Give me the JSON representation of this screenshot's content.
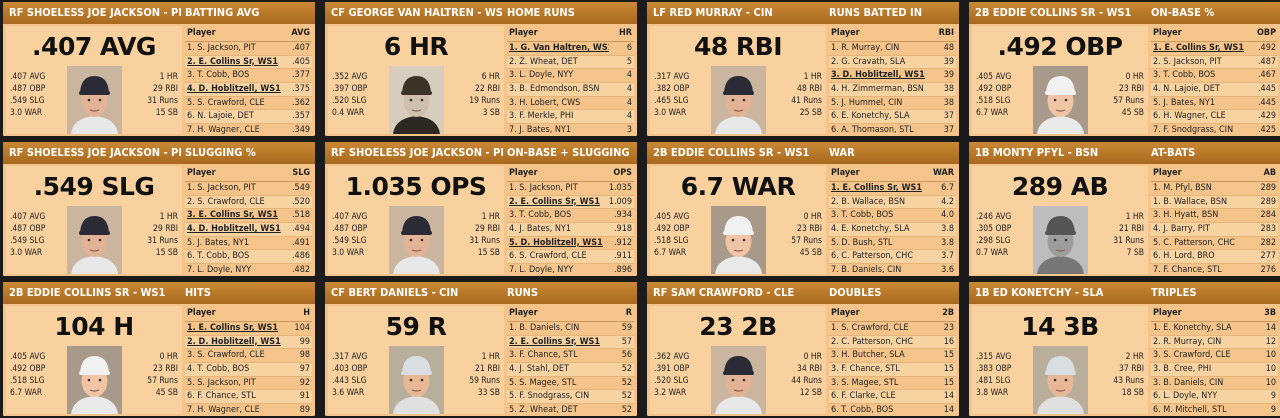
{
  "cards": [
    {
      "player_label": "RF SHOELESS JOE JACKSON - PIT",
      "stat_title": "BATTING AVG",
      "big": ".407 AVG",
      "photo_icon": "player-portrait-dark-cap",
      "left_stats": [
        [
          ".407 AVG",
          "1 HR"
        ],
        [
          ".487 OBP",
          "29 RBI"
        ],
        [
          ".549 SLG",
          "31 Runs"
        ],
        [
          "3.0 WAR",
          "15 SB"
        ]
      ],
      "table_header": [
        "Player",
        "AVG"
      ],
      "rows": [
        [
          "1. S. Jackson, PIT",
          ".407"
        ],
        [
          "2. E. Collins Sr, WS1",
          ".405"
        ],
        [
          "3. T. Cobb, BOS",
          ".377"
        ],
        [
          "4. D. Hoblitzell, WS1",
          ".375"
        ],
        [
          "5. S. Crawford, CLE",
          ".362"
        ],
        [
          "6. N. Lajoie, DET",
          ".357"
        ],
        [
          "7. H. Wagner, CLE",
          ".349"
        ]
      ],
      "highlight": [
        1,
        3
      ]
    },
    {
      "player_label": "CF GEORGE VAN HALTREN - WS1",
      "stat_title": "HOME RUNS",
      "big": "6 HR",
      "photo_icon": "player-portrait-sepia-suit",
      "left_stats": [
        [
          ".352 AVG",
          "6 HR"
        ],
        [
          ".397 OBP",
          "22 RBI"
        ],
        [
          ".520 SLG",
          "19 Runs"
        ],
        [
          "0.4 WAR",
          "3 SB"
        ]
      ],
      "table_header": [
        "Player",
        "HR"
      ],
      "rows": [
        [
          "1. G. Van Haltren, WS1",
          "6"
        ],
        [
          "2. Z. Wheat, DET",
          "5"
        ],
        [
          "3. L. Doyle, NYY",
          "4"
        ],
        [
          "3. B. Edmondson, BSN",
          "4"
        ],
        [
          "3. H. Lobert, CWS",
          "4"
        ],
        [
          "3. F. Merkle, PHI",
          "4"
        ],
        [
          "7. J. Bates, NY1",
          "3"
        ]
      ],
      "highlight": [
        0
      ]
    },
    {
      "player_label": "LF RED MURRAY - CIN",
      "stat_title": "RUNS BATTED IN",
      "big": "48 RBI",
      "photo_icon": "player-portrait-dark-cap",
      "left_stats": [
        [
          ".317 AVG",
          "1 HR"
        ],
        [
          ".382 OBP",
          "48 RBI"
        ],
        [
          ".465 SLG",
          "41 Runs"
        ],
        [
          "3.0 WAR",
          "25 SB"
        ]
      ],
      "table_header": [
        "Player",
        "RBI"
      ],
      "rows": [
        [
          "1. R. Murray, CIN",
          "48"
        ],
        [
          "2. G. Cravath, SLA",
          "39"
        ],
        [
          "3. D. Hoblitzell, WS1",
          "39"
        ],
        [
          "4. H. Zimmerman, BSN",
          "38"
        ],
        [
          "5. J. Hummel, CIN",
          "38"
        ],
        [
          "6. E. Konetchy, SLA",
          "37"
        ],
        [
          "6. A. Thomason, STL",
          "37"
        ]
      ],
      "highlight": [
        2
      ]
    },
    {
      "player_label": "2B EDDIE COLLINS SR - WS1",
      "stat_title": "ON-BASE %",
      "big": ".492 OBP",
      "photo_icon": "player-portrait-striped-cap",
      "left_stats": [
        [
          ".405 AVG",
          "0 HR"
        ],
        [
          ".492 OBP",
          "23 RBI"
        ],
        [
          ".518 SLG",
          "57 Runs"
        ],
        [
          "6.7 WAR",
          "45 SB"
        ]
      ],
      "table_header": [
        "Player",
        "OBP"
      ],
      "rows": [
        [
          "1. E. Collins Sr, WS1",
          ".492"
        ],
        [
          "2. S. Jackson, PIT",
          ".487"
        ],
        [
          "3. T. Cobb, BOS",
          ".467"
        ],
        [
          "4. N. Lajoie, DET",
          ".445"
        ],
        [
          "5. J. Bates, NY1",
          ".445"
        ],
        [
          "6. H. Wagner, CLE",
          ".429"
        ],
        [
          "7. F. Snodgrass, CIN",
          ".425"
        ]
      ],
      "highlight": [
        0
      ]
    },
    {
      "player_label": "RF SHOELESS JOE JACKSON - PIT",
      "stat_title": "SLUGGING %",
      "big": ".549 SLG",
      "photo_icon": "player-portrait-dark-cap",
      "left_stats": [
        [
          ".407 AVG",
          "1 HR"
        ],
        [
          ".487 OBP",
          "29 RBI"
        ],
        [
          ".549 SLG",
          "31 Runs"
        ],
        [
          "3.0 WAR",
          "15 SB"
        ]
      ],
      "table_header": [
        "Player",
        "SLG"
      ],
      "rows": [
        [
          "1. S. Jackson, PIT",
          ".549"
        ],
        [
          "2. S. Crawford, CLE",
          ".520"
        ],
        [
          "3. E. Collins Sr, WS1",
          ".518"
        ],
        [
          "4. D. Hoblitzell, WS1",
          ".494"
        ],
        [
          "5. J. Bates, NY1",
          ".491"
        ],
        [
          "6. T. Cobb, BOS",
          ".486"
        ],
        [
          "7. L. Doyle, NYY",
          ".482"
        ]
      ],
      "highlight": [
        2,
        3
      ]
    },
    {
      "player_label": "RF SHOELESS JOE JACKSON - PIT",
      "stat_title": "ON-BASE + SLUGGING",
      "big": "1.035 OPS",
      "photo_icon": "player-portrait-dark-cap",
      "left_stats": [
        [
          ".407 AVG",
          "1 HR"
        ],
        [
          ".487 OBP",
          "29 RBI"
        ],
        [
          ".549 SLG",
          "31 Runs"
        ],
        [
          "3.0 WAR",
          "15 SB"
        ]
      ],
      "table_header": [
        "Player",
        "OPS"
      ],
      "rows": [
        [
          "1. S. Jackson, PIT",
          "1.035"
        ],
        [
          "2. E. Collins Sr, WS1",
          "1.009"
        ],
        [
          "3. T. Cobb, BOS",
          ".934"
        ],
        [
          "4. J. Bates, NY1",
          ".918"
        ],
        [
          "5. D. Hoblitzell, WS1",
          ".912"
        ],
        [
          "6. S. Crawford, CLE",
          ".911"
        ],
        [
          "7. L. Doyle, NYY",
          ".896"
        ]
      ],
      "highlight": [
        1,
        4
      ]
    },
    {
      "player_label": "2B EDDIE COLLINS SR - WS1",
      "stat_title": "WAR",
      "big": "6.7 WAR",
      "photo_icon": "player-portrait-striped-cap",
      "left_stats": [
        [
          ".405 AVG",
          "0 HR"
        ],
        [
          ".492 OBP",
          "23 RBI"
        ],
        [
          ".518 SLG",
          "57 Runs"
        ],
        [
          "6.7 WAR",
          "45 SB"
        ]
      ],
      "table_header": [
        "Player",
        "WAR"
      ],
      "rows": [
        [
          "1. E. Collins Sr, WS1",
          "6.7"
        ],
        [
          "2. B. Wallace, BSN",
          "4.2"
        ],
        [
          "3. T. Cobb, BOS",
          "4.0"
        ],
        [
          "4. E. Konetchy, SLA",
          "3.8"
        ],
        [
          "5. D. Bush, STL",
          "3.8"
        ],
        [
          "6. C. Patterson, CHC",
          "3.7"
        ],
        [
          "7. B. Daniels, CIN",
          "3.6"
        ]
      ],
      "highlight": [
        0
      ]
    },
    {
      "player_label": "1B MONTY PFYL - BSN",
      "stat_title": "AT-BATS",
      "big": "289 AB",
      "photo_icon": "player-portrait-grayscale",
      "left_stats": [
        [
          ".246 AVG",
          "1 HR"
        ],
        [
          ".305 OBP",
          "21 RBI"
        ],
        [
          ".298 SLG",
          "31 Runs"
        ],
        [
          "0.7 WAR",
          "7 SB"
        ]
      ],
      "table_header": [
        "Player",
        "AB"
      ],
      "rows": [
        [
          "1. M. Pfyl, BSN",
          "289"
        ],
        [
          "1. B. Wallace, BSN",
          "289"
        ],
        [
          "3. H. Hyatt, BSN",
          "284"
        ],
        [
          "4. J. Barry, PIT",
          "283"
        ],
        [
          "5. C. Patterson, CHC",
          "282"
        ],
        [
          "6. H. Lord, BRO",
          "277"
        ],
        [
          "7. F. Chance, STL",
          "276"
        ]
      ],
      "highlight": []
    },
    {
      "player_label": "2B EDDIE COLLINS SR - WS1",
      "stat_title": "HITS",
      "big": "104 H",
      "photo_icon": "player-portrait-striped-cap",
      "left_stats": [
        [
          ".405 AVG",
          "0 HR"
        ],
        [
          ".492 OBP",
          "23 RBI"
        ],
        [
          ".518 SLG",
          "57 Runs"
        ],
        [
          "6.7 WAR",
          "45 SB"
        ]
      ],
      "table_header": [
        "Player",
        "H"
      ],
      "rows": [
        [
          "1. E. Collins Sr, WS1",
          "104"
        ],
        [
          "2. D. Hoblitzell, WS1",
          "99"
        ],
        [
          "3. S. Crawford, CLE",
          "98"
        ],
        [
          "4. T. Cobb, BOS",
          "97"
        ],
        [
          "5. S. Jackson, PIT",
          "92"
        ],
        [
          "6. F. Chance, STL",
          "91"
        ],
        [
          "7. H. Wagner, CLE",
          "89"
        ]
      ],
      "highlight": [
        0,
        1
      ]
    },
    {
      "player_label": "CF BERT DANIELS - CIN",
      "stat_title": "RUNS",
      "big": "59 R",
      "photo_icon": "player-portrait-light-cap",
      "left_stats": [
        [
          ".317 AVG",
          "1 HR"
        ],
        [
          ".403 OBP",
          "21 RBI"
        ],
        [
          ".443 SLG",
          "59 Runs"
        ],
        [
          "3.6 WAR",
          "33 SB"
        ]
      ],
      "table_header": [
        "Player",
        "R"
      ],
      "rows": [
        [
          "1. B. Daniels, CIN",
          "59"
        ],
        [
          "2. E. Collins Sr, WS1",
          "57"
        ],
        [
          "3. F. Chance, STL",
          "56"
        ],
        [
          "4. J. Stahl, DET",
          "52"
        ],
        [
          "5. S. Magee, STL",
          "52"
        ],
        [
          "5. F. Snodgrass, CIN",
          "52"
        ],
        [
          "5. Z. Wheat, DET",
          "52"
        ]
      ],
      "highlight": [
        1
      ]
    },
    {
      "player_label": "RF SAM CRAWFORD - CLE",
      "stat_title": "DOUBLES",
      "big": "23 2B",
      "photo_icon": "player-portrait-dark-cap",
      "left_stats": [
        [
          ".362 AVG",
          "0 HR"
        ],
        [
          ".391 OBP",
          "34 RBI"
        ],
        [
          ".520 SLG",
          "44 Runs"
        ],
        [
          "3.2 WAR",
          "12 SB"
        ]
      ],
      "table_header": [
        "Player",
        "2B"
      ],
      "rows": [
        [
          "1. S. Crawford, CLE",
          "23"
        ],
        [
          "2. C. Patterson, CHC",
          "16"
        ],
        [
          "3. H. Butcher, SLA",
          "15"
        ],
        [
          "3. F. Chance, STL",
          "15"
        ],
        [
          "3. S. Magee, STL",
          "15"
        ],
        [
          "6. F. Clarke, CLE",
          "14"
        ],
        [
          "6. T. Cobb, BOS",
          "14"
        ]
      ],
      "highlight": []
    },
    {
      "player_label": "1B ED KONETCHY - SLA",
      "stat_title": "TRIPLES",
      "big": "14 3B",
      "photo_icon": "player-portrait-light-cap",
      "left_stats": [
        [
          ".315 AVG",
          "2 HR"
        ],
        [
          ".383 OBP",
          "37 RBI"
        ],
        [
          ".481 SLG",
          "43 Runs"
        ],
        [
          "3.8 WAR",
          "18 SB"
        ]
      ],
      "table_header": [
        "Player",
        "3B"
      ],
      "rows": [
        [
          "1. E. Konetchy, SLA",
          "14"
        ],
        [
          "2. R. Murray, CIN",
          "12"
        ],
        [
          "3. S. Crawford, CLE",
          "10"
        ],
        [
          "3. B. Cree, PHI",
          "10"
        ],
        [
          "3. B. Daniels, CIN",
          "10"
        ],
        [
          "6. L. Doyle, NYY",
          "9"
        ],
        [
          "6. M. Mitchell, STL",
          "9"
        ]
      ],
      "highlight": []
    }
  ]
}
